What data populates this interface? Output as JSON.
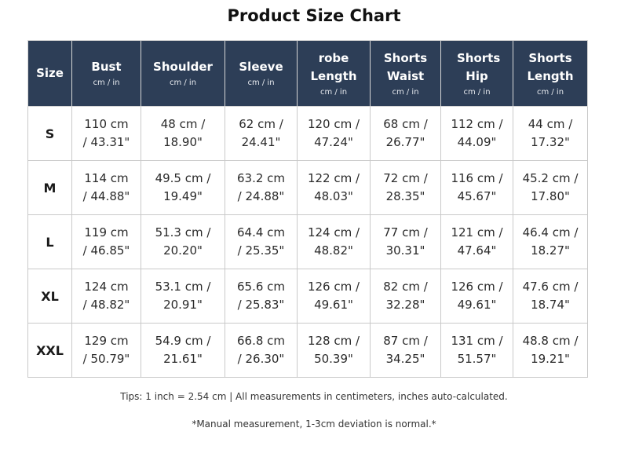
{
  "title": "Product Size Chart",
  "columns": [
    {
      "name": "Size",
      "unit": ""
    },
    {
      "name": "Bust",
      "unit": "cm / in"
    },
    {
      "name": "Shoulder",
      "unit": "cm / in"
    },
    {
      "name": "Sleeve",
      "unit": "cm / in"
    },
    {
      "name": "robe Length",
      "unit": "cm / in"
    },
    {
      "name": "Shorts Waist",
      "unit": "cm / in"
    },
    {
      "name": "Shorts Hip",
      "unit": "cm / in"
    },
    {
      "name": "Shorts Length",
      "unit": "cm / in"
    }
  ],
  "rows": [
    {
      "size": "S",
      "cells": [
        [
          "110 cm",
          "/ 43.31\""
        ],
        [
          "48 cm /",
          "18.90\""
        ],
        [
          "62 cm /",
          "24.41\""
        ],
        [
          "120 cm /",
          "47.24\""
        ],
        [
          "68 cm /",
          "26.77\""
        ],
        [
          "112 cm /",
          "44.09\""
        ],
        [
          "44 cm /",
          "17.32\""
        ]
      ]
    },
    {
      "size": "M",
      "cells": [
        [
          "114 cm",
          "/ 44.88\""
        ],
        [
          "49.5 cm /",
          "19.49\""
        ],
        [
          "63.2 cm",
          "/ 24.88\""
        ],
        [
          "122 cm /",
          "48.03\""
        ],
        [
          "72 cm /",
          "28.35\""
        ],
        [
          "116 cm /",
          "45.67\""
        ],
        [
          "45.2 cm /",
          "17.80\""
        ]
      ]
    },
    {
      "size": "L",
      "cells": [
        [
          "119 cm",
          "/ 46.85\""
        ],
        [
          "51.3 cm /",
          "20.20\""
        ],
        [
          "64.4 cm",
          "/ 25.35\""
        ],
        [
          "124 cm /",
          "48.82\""
        ],
        [
          "77 cm /",
          "30.31\""
        ],
        [
          "121 cm /",
          "47.64\""
        ],
        [
          "46.4 cm /",
          "18.27\""
        ]
      ]
    },
    {
      "size": "XL",
      "cells": [
        [
          "124 cm",
          "/ 48.82\""
        ],
        [
          "53.1 cm /",
          "20.91\""
        ],
        [
          "65.6 cm",
          "/ 25.83\""
        ],
        [
          "126 cm /",
          "49.61\""
        ],
        [
          "82 cm /",
          "32.28\""
        ],
        [
          "126 cm /",
          "49.61\""
        ],
        [
          "47.6 cm /",
          "18.74\""
        ]
      ]
    },
    {
      "size": "XXL",
      "cells": [
        [
          "129 cm",
          "/ 50.79\""
        ],
        [
          "54.9 cm /",
          "21.61\""
        ],
        [
          "66.8 cm",
          "/ 26.30\""
        ],
        [
          "128 cm /",
          "50.39\""
        ],
        [
          "87 cm /",
          "34.25\""
        ],
        [
          "131 cm /",
          "51.57\""
        ],
        [
          "48.8 cm /",
          "19.21\""
        ]
      ]
    }
  ],
  "tips": "Tips: 1 inch = 2.54 cm | All measurements in centimeters, inches auto-calculated.",
  "note": "*Manual measurement, 1-3cm deviation is normal.*",
  "colors": {
    "header_bg": "#2d3e57",
    "header_text": "#ffffff",
    "border": "#c9c9c9"
  }
}
